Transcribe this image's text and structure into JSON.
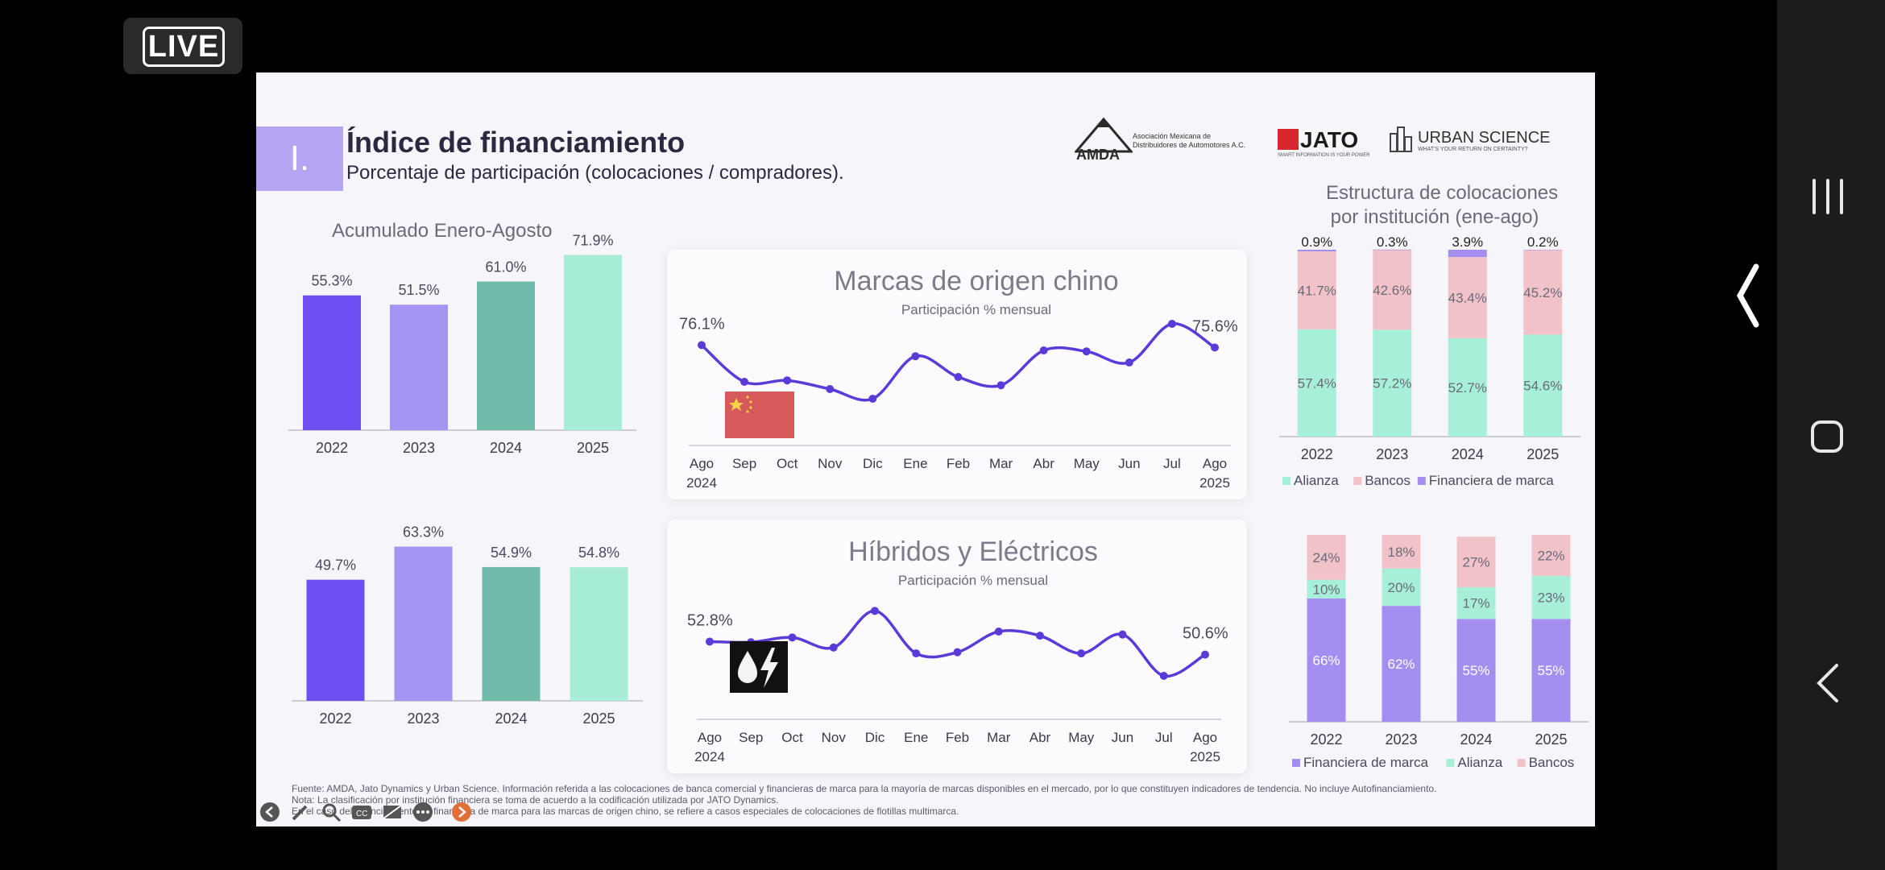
{
  "live_badge": "LIVE",
  "slide": {
    "section_number": "I.",
    "title": "Índice de financiamiento",
    "subtitle": "Porcentaje de participación (colocaciones / compradores).",
    "logos": {
      "amda_name": "AMDA",
      "amda_text1": "Asociación Mexicana de",
      "amda_text2": "Distribuidores de Automotores A.C.",
      "jato_name": "JATO",
      "jato_tag": "SMART INFORMATION IS YOUR POWER",
      "urban_name": "URBAN SCIENCE",
      "urban_tag": "WHAT'S YOUR RETURN ON CERTAINTY?"
    },
    "left_title": "Acumulado Enero-Agosto",
    "right_title_line1": "Estructura de colocaciones",
    "right_title_line2": "por institución (ene-ago)",
    "footer": [
      "Fuente: AMDA, Jato Dynamics y Urban Science. Información referida a las colocaciones de banca comercial y financieras de marca para la mayoría de marcas disponibles en el mercado, por lo que constituyen indicadores de tendencia. No incluye Autofinanciamiento.",
      "Nota: La clasificación por institución financiera se toma de acuerdo a la codificación utilizada por JATO Dynamics.",
      "En el caso del financiamiento de financiera de marca para las marcas de origen chino, se refiere a casos especiales de colocaciones de flotillas multimarca."
    ],
    "colors": {
      "c2022": "#6e4ef0",
      "c2023": "#a694f2",
      "c2024": "#6fbaa9",
      "c2025": "#a7ecd6",
      "line": "#5b3ad8",
      "alianza": "#a7efd9",
      "bancos": "#f1c3c9",
      "financiera": "#a48ff0"
    }
  },
  "chart_data": [
    {
      "type": "bar",
      "categories": [
        "2022",
        "2023",
        "2024",
        "2025"
      ],
      "values": [
        55.3,
        51.5,
        61.0,
        71.9
      ],
      "labels": [
        "55.3%",
        "51.5%",
        "61.0%",
        "71.9%"
      ],
      "ylim": [
        0,
        80
      ]
    },
    {
      "type": "bar",
      "categories": [
        "2022",
        "2023",
        "2024",
        "2025"
      ],
      "values": [
        49.7,
        63.3,
        54.9,
        54.8
      ],
      "labels": [
        "49.7%",
        "63.3%",
        "54.9%",
        "54.8%"
      ],
      "ylim": [
        0,
        80
      ]
    },
    {
      "type": "line",
      "title": "Marcas de origen chino",
      "subtitle": "Participación % mensual",
      "x": [
        "Ago",
        "Sep",
        "Oct",
        "Nov",
        "Dic",
        "Ene",
        "Feb",
        "Mar",
        "Abr",
        "May",
        "Jun",
        "Jul",
        "Ago"
      ],
      "x_sub": [
        "2024",
        "",
        "",
        "",
        "",
        "",
        "",
        "",
        "",
        "",
        "",
        "",
        "2025"
      ],
      "values": [
        76.1,
        68.5,
        68.8,
        67.0,
        65.0,
        73.8,
        69.5,
        67.8,
        75.0,
        74.8,
        72.5,
        80.5,
        75.6
      ],
      "start_label": "76.1%",
      "end_label": "75.6%",
      "ylim": [
        55,
        90
      ]
    },
    {
      "type": "line",
      "title": "Híbridos y Eléctricos",
      "subtitle": "Participación % mensual",
      "x": [
        "Ago",
        "Sep",
        "Oct",
        "Nov",
        "Dic",
        "Ene",
        "Feb",
        "Mar",
        "Abr",
        "May",
        "Jun",
        "Jul",
        "Ago"
      ],
      "x_sub": [
        "2024",
        "",
        "",
        "",
        "",
        "",
        "",
        "",
        "",
        "",
        "",
        "",
        "2025"
      ],
      "values": [
        52.8,
        52.7,
        53.5,
        51.8,
        58.0,
        50.8,
        51.0,
        54.5,
        53.8,
        50.8,
        54.0,
        47.0,
        50.6
      ],
      "start_label": "52.8%",
      "end_label": "50.6%",
      "ylim": [
        38,
        68
      ]
    },
    {
      "type": "bar",
      "stacked": true,
      "categories": [
        "2022",
        "2023",
        "2024",
        "2025"
      ],
      "series": [
        {
          "name": "Alianza",
          "values": [
            57.4,
            57.2,
            52.7,
            54.6
          ],
          "labels": [
            "57.4%",
            "57.2%",
            "52.7%",
            "54.6%"
          ]
        },
        {
          "name": "Bancos",
          "values": [
            41.7,
            42.6,
            43.4,
            45.2
          ],
          "labels": [
            "41.7%",
            "42.6%",
            "43.4%",
            "45.2%"
          ]
        },
        {
          "name": "Financiera de marca",
          "values": [
            0.9,
            0.3,
            3.9,
            0.2
          ],
          "labels": [
            "0.9%",
            "0.3%",
            "3.9%",
            "0.2%"
          ]
        }
      ],
      "legend_position": "bottom",
      "ylim": [
        0,
        100
      ]
    },
    {
      "type": "bar",
      "stacked": true,
      "categories": [
        "2022",
        "2023",
        "2024",
        "2025"
      ],
      "series": [
        {
          "name": "Financiera de marca",
          "values": [
            66,
            62,
            55,
            55
          ],
          "labels": [
            "66%",
            "62%",
            "55%",
            "55%"
          ]
        },
        {
          "name": "Alianza",
          "values": [
            10,
            20,
            17,
            23
          ],
          "labels": [
            "10%",
            "20%",
            "17%",
            "23%"
          ]
        },
        {
          "name": "Bancos",
          "values": [
            24,
            18,
            27,
            22
          ],
          "labels": [
            "24%",
            "18%",
            "27%",
            "22%"
          ]
        }
      ],
      "legend_position": "bottom",
      "ylim": [
        0,
        100
      ]
    }
  ]
}
